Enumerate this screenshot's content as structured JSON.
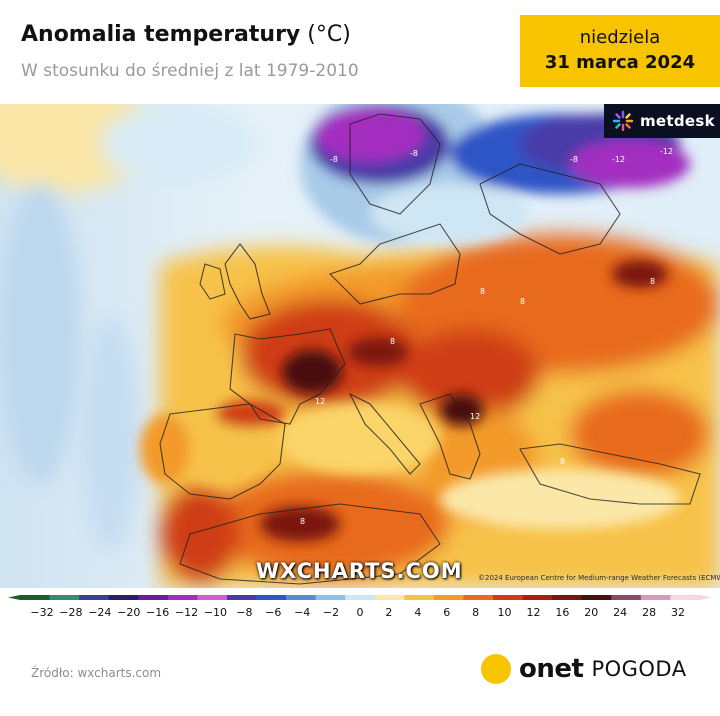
{
  "header": {
    "title": "Anomalia temperatury",
    "title_unit": "(°C)",
    "subtitle": "W stosunku do średniej z lat 1979-2010"
  },
  "date_box": {
    "day": "niedziela",
    "date": "31 marca 2024",
    "color": "#f8c400"
  },
  "map": {
    "provider_logo": "metdesk",
    "watermark": "WXCHARTS.COM",
    "copyright": "©2024 European Centre for Medium-range Weather Forecasts (ECMWF)"
  },
  "scale": {
    "ticks": [
      "−32",
      "−28",
      "−24",
      "−20",
      "−16",
      "−12",
      "−10",
      "−8",
      "−6",
      "−4",
      "−2",
      "0",
      "2",
      "4",
      "6",
      "8",
      "10",
      "12",
      "16",
      "20",
      "24",
      "28",
      "32"
    ],
    "colors": [
      "#1b5e2a",
      "#2f8f6f",
      "#3a3f9c",
      "#2a1d6e",
      "#6a1c9a",
      "#a32dc0",
      "#d45bd6",
      "#4a3aa8",
      "#2f55c6",
      "#4f8fd8",
      "#8cc2e8",
      "#cfe6f4",
      "#fbe7a8",
      "#f7c24a",
      "#f39a2a",
      "#e86a1d",
      "#cf3d16",
      "#a81e12",
      "#7a1410",
      "#4a0f10",
      "#8a4a6a",
      "#d79ac0",
      "#f5d7e8"
    ]
  },
  "footer": {
    "source": "Źródło: wxcharts.com",
    "brand": "onet",
    "brand_sub": "POGODA"
  }
}
